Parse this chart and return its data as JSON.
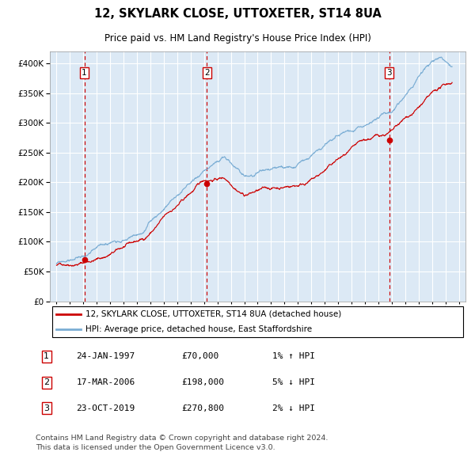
{
  "title": "12, SKYLARK CLOSE, UTTOXETER, ST14 8UA",
  "subtitle": "Price paid vs. HM Land Registry's House Price Index (HPI)",
  "hpi_label": "HPI: Average price, detached house, East Staffordshire",
  "price_label": "12, SKYLARK CLOSE, UTTOXETER, ST14 8UA (detached house)",
  "background_color": "#dce9f5",
  "plot_bg_color": "#dce9f5",
  "red_line_color": "#cc0000",
  "blue_line_color": "#7aadd4",
  "dashed_line_color": "#cc0000",
  "grid_color": "#ffffff",
  "purchases": [
    {
      "date_num": 1997.07,
      "price": 70000,
      "label": "1"
    },
    {
      "date_num": 2006.21,
      "price": 198000,
      "label": "2"
    },
    {
      "date_num": 2019.81,
      "price": 270800,
      "label": "3"
    }
  ],
  "table_rows": [
    {
      "num": "1",
      "date": "24-JAN-1997",
      "price": "£70,000",
      "hpi": "1% ↑ HPI"
    },
    {
      "num": "2",
      "date": "17-MAR-2006",
      "price": "£198,000",
      "hpi": "5% ↓ HPI"
    },
    {
      "num": "3",
      "date": "23-OCT-2019",
      "price": "£270,800",
      "hpi": "2% ↓ HPI"
    }
  ],
  "footer": "Contains HM Land Registry data © Crown copyright and database right 2024.\nThis data is licensed under the Open Government Licence v3.0.",
  "ylim": [
    0,
    420000
  ],
  "yticks": [
    0,
    50000,
    100000,
    150000,
    200000,
    250000,
    300000,
    350000,
    400000
  ],
  "xlim_start": 1994.5,
  "xlim_end": 2025.5,
  "xtick_years": [
    1995,
    1996,
    1997,
    1998,
    1999,
    2000,
    2001,
    2002,
    2003,
    2004,
    2005,
    2006,
    2007,
    2008,
    2009,
    2010,
    2011,
    2012,
    2013,
    2014,
    2015,
    2016,
    2017,
    2018,
    2019,
    2020,
    2021,
    2022,
    2023,
    2024,
    2025
  ],
  "key_years_red": [
    1995.0,
    1996.0,
    1997.0,
    1998.5,
    2000.0,
    2001.5,
    2003.0,
    2004.5,
    2006.0,
    2007.5,
    2009.0,
    2010.0,
    2011.5,
    2013.0,
    2014.5,
    2016.0,
    2017.5,
    2019.0,
    2020.0,
    2021.5,
    2022.5,
    2023.5,
    2024.5
  ],
  "key_vals_red": [
    60000,
    65000,
    70000,
    80000,
    95000,
    105000,
    140000,
    168000,
    198000,
    205000,
    183000,
    190000,
    193000,
    200000,
    215000,
    240000,
    255000,
    265000,
    270800,
    295000,
    315000,
    330000,
    340000
  ],
  "key_years_blue": [
    1995.0,
    1996.0,
    1997.0,
    1998.5,
    2000.0,
    2001.5,
    2003.0,
    2004.5,
    2006.5,
    2007.5,
    2009.0,
    2010.0,
    2011.5,
    2013.0,
    2014.5,
    2016.0,
    2017.5,
    2019.0,
    2020.0,
    2021.5,
    2022.5,
    2023.5,
    2024.5
  ],
  "key_vals_blue": [
    63000,
    68000,
    74000,
    85000,
    100000,
    112000,
    148000,
    178000,
    218000,
    228000,
    195000,
    200000,
    200000,
    207000,
    222000,
    248000,
    265000,
    278000,
    282000,
    325000,
    360000,
    370000,
    355000
  ]
}
